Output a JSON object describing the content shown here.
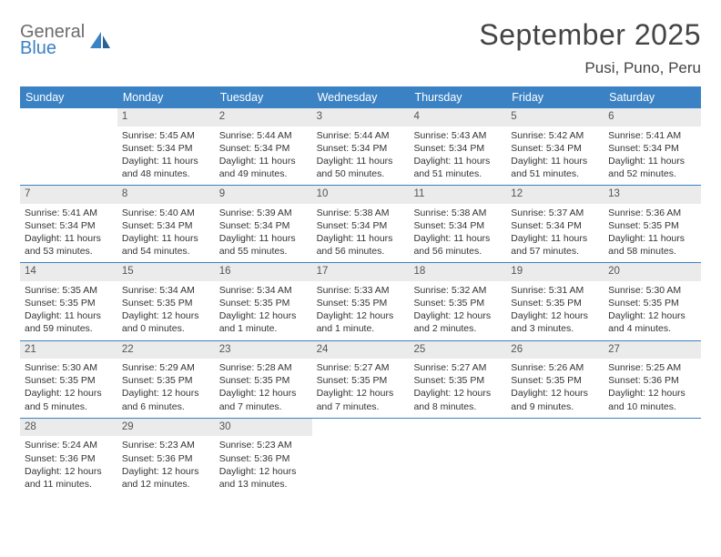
{
  "logo": {
    "word1": "General",
    "word2": "Blue"
  },
  "header": {
    "title": "September 2025",
    "location": "Pusi, Puno, Peru"
  },
  "colors": {
    "accent": "#3b82c4",
    "daynum_bg": "#ebebeb",
    "text": "#333333",
    "title": "#444444"
  },
  "dayNames": [
    "Sunday",
    "Monday",
    "Tuesday",
    "Wednesday",
    "Thursday",
    "Friday",
    "Saturday"
  ],
  "weeks": [
    [
      {
        "blank": true
      },
      {
        "n": "1",
        "sunrise": "Sunrise: 5:45 AM",
        "sunset": "Sunset: 5:34 PM",
        "day1": "Daylight: 11 hours",
        "day2": "and 48 minutes."
      },
      {
        "n": "2",
        "sunrise": "Sunrise: 5:44 AM",
        "sunset": "Sunset: 5:34 PM",
        "day1": "Daylight: 11 hours",
        "day2": "and 49 minutes."
      },
      {
        "n": "3",
        "sunrise": "Sunrise: 5:44 AM",
        "sunset": "Sunset: 5:34 PM",
        "day1": "Daylight: 11 hours",
        "day2": "and 50 minutes."
      },
      {
        "n": "4",
        "sunrise": "Sunrise: 5:43 AM",
        "sunset": "Sunset: 5:34 PM",
        "day1": "Daylight: 11 hours",
        "day2": "and 51 minutes."
      },
      {
        "n": "5",
        "sunrise": "Sunrise: 5:42 AM",
        "sunset": "Sunset: 5:34 PM",
        "day1": "Daylight: 11 hours",
        "day2": "and 51 minutes."
      },
      {
        "n": "6",
        "sunrise": "Sunrise: 5:41 AM",
        "sunset": "Sunset: 5:34 PM",
        "day1": "Daylight: 11 hours",
        "day2": "and 52 minutes."
      }
    ],
    [
      {
        "n": "7",
        "sunrise": "Sunrise: 5:41 AM",
        "sunset": "Sunset: 5:34 PM",
        "day1": "Daylight: 11 hours",
        "day2": "and 53 minutes."
      },
      {
        "n": "8",
        "sunrise": "Sunrise: 5:40 AM",
        "sunset": "Sunset: 5:34 PM",
        "day1": "Daylight: 11 hours",
        "day2": "and 54 minutes."
      },
      {
        "n": "9",
        "sunrise": "Sunrise: 5:39 AM",
        "sunset": "Sunset: 5:34 PM",
        "day1": "Daylight: 11 hours",
        "day2": "and 55 minutes."
      },
      {
        "n": "10",
        "sunrise": "Sunrise: 5:38 AM",
        "sunset": "Sunset: 5:34 PM",
        "day1": "Daylight: 11 hours",
        "day2": "and 56 minutes."
      },
      {
        "n": "11",
        "sunrise": "Sunrise: 5:38 AM",
        "sunset": "Sunset: 5:34 PM",
        "day1": "Daylight: 11 hours",
        "day2": "and 56 minutes."
      },
      {
        "n": "12",
        "sunrise": "Sunrise: 5:37 AM",
        "sunset": "Sunset: 5:34 PM",
        "day1": "Daylight: 11 hours",
        "day2": "and 57 minutes."
      },
      {
        "n": "13",
        "sunrise": "Sunrise: 5:36 AM",
        "sunset": "Sunset: 5:35 PM",
        "day1": "Daylight: 11 hours",
        "day2": "and 58 minutes."
      }
    ],
    [
      {
        "n": "14",
        "sunrise": "Sunrise: 5:35 AM",
        "sunset": "Sunset: 5:35 PM",
        "day1": "Daylight: 11 hours",
        "day2": "and 59 minutes."
      },
      {
        "n": "15",
        "sunrise": "Sunrise: 5:34 AM",
        "sunset": "Sunset: 5:35 PM",
        "day1": "Daylight: 12 hours",
        "day2": "and 0 minutes."
      },
      {
        "n": "16",
        "sunrise": "Sunrise: 5:34 AM",
        "sunset": "Sunset: 5:35 PM",
        "day1": "Daylight: 12 hours",
        "day2": "and 1 minute."
      },
      {
        "n": "17",
        "sunrise": "Sunrise: 5:33 AM",
        "sunset": "Sunset: 5:35 PM",
        "day1": "Daylight: 12 hours",
        "day2": "and 1 minute."
      },
      {
        "n": "18",
        "sunrise": "Sunrise: 5:32 AM",
        "sunset": "Sunset: 5:35 PM",
        "day1": "Daylight: 12 hours",
        "day2": "and 2 minutes."
      },
      {
        "n": "19",
        "sunrise": "Sunrise: 5:31 AM",
        "sunset": "Sunset: 5:35 PM",
        "day1": "Daylight: 12 hours",
        "day2": "and 3 minutes."
      },
      {
        "n": "20",
        "sunrise": "Sunrise: 5:30 AM",
        "sunset": "Sunset: 5:35 PM",
        "day1": "Daylight: 12 hours",
        "day2": "and 4 minutes."
      }
    ],
    [
      {
        "n": "21",
        "sunrise": "Sunrise: 5:30 AM",
        "sunset": "Sunset: 5:35 PM",
        "day1": "Daylight: 12 hours",
        "day2": "and 5 minutes."
      },
      {
        "n": "22",
        "sunrise": "Sunrise: 5:29 AM",
        "sunset": "Sunset: 5:35 PM",
        "day1": "Daylight: 12 hours",
        "day2": "and 6 minutes."
      },
      {
        "n": "23",
        "sunrise": "Sunrise: 5:28 AM",
        "sunset": "Sunset: 5:35 PM",
        "day1": "Daylight: 12 hours",
        "day2": "and 7 minutes."
      },
      {
        "n": "24",
        "sunrise": "Sunrise: 5:27 AM",
        "sunset": "Sunset: 5:35 PM",
        "day1": "Daylight: 12 hours",
        "day2": "and 7 minutes."
      },
      {
        "n": "25",
        "sunrise": "Sunrise: 5:27 AM",
        "sunset": "Sunset: 5:35 PM",
        "day1": "Daylight: 12 hours",
        "day2": "and 8 minutes."
      },
      {
        "n": "26",
        "sunrise": "Sunrise: 5:26 AM",
        "sunset": "Sunset: 5:35 PM",
        "day1": "Daylight: 12 hours",
        "day2": "and 9 minutes."
      },
      {
        "n": "27",
        "sunrise": "Sunrise: 5:25 AM",
        "sunset": "Sunset: 5:36 PM",
        "day1": "Daylight: 12 hours",
        "day2": "and 10 minutes."
      }
    ],
    [
      {
        "n": "28",
        "sunrise": "Sunrise: 5:24 AM",
        "sunset": "Sunset: 5:36 PM",
        "day1": "Daylight: 12 hours",
        "day2": "and 11 minutes."
      },
      {
        "n": "29",
        "sunrise": "Sunrise: 5:23 AM",
        "sunset": "Sunset: 5:36 PM",
        "day1": "Daylight: 12 hours",
        "day2": "and 12 minutes."
      },
      {
        "n": "30",
        "sunrise": "Sunrise: 5:23 AM",
        "sunset": "Sunset: 5:36 PM",
        "day1": "Daylight: 12 hours",
        "day2": "and 13 minutes."
      },
      {
        "blank": true
      },
      {
        "blank": true
      },
      {
        "blank": true
      },
      {
        "blank": true
      }
    ]
  ]
}
